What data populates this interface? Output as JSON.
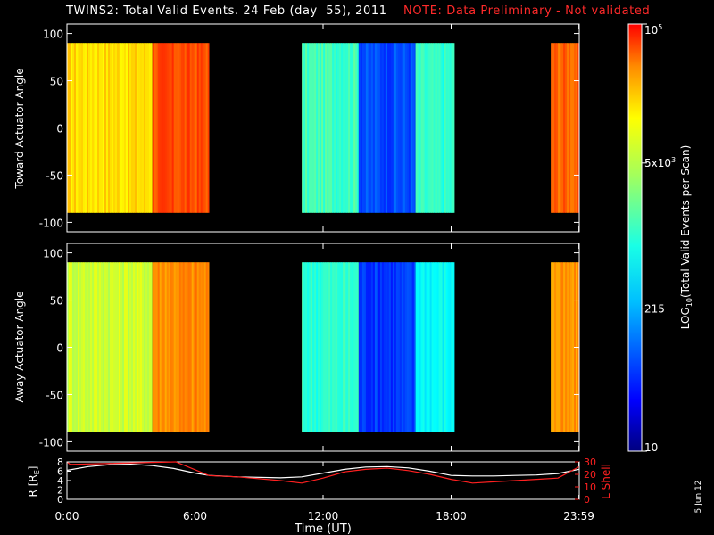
{
  "title": "TWINS2: Total Valid Events. 24 Feb (day  55), 2011",
  "note": "NOTE: Data Preliminary - Not validated",
  "date_stamp": "5 Jun 12",
  "colors": {
    "background": "#000000",
    "axes": "#ffffff",
    "note": "#ff2a2a",
    "r_line": "#ffffff",
    "lshell_line": "#ff2020"
  },
  "chart_data": [
    {
      "type": "heatmap",
      "ylabel": "Toward Actuator Angle",
      "ylim": [
        -110,
        110
      ],
      "yticks": [
        "100",
        "50",
        "0",
        "-50",
        "-100"
      ],
      "xlim": [
        "0:00",
        "23:59"
      ],
      "data_angle_range": [
        -90,
        90
      ],
      "segments": [
        {
          "start": "0:00",
          "end": "4:00",
          "level": 0.66
        },
        {
          "start": "4:00",
          "end": "6:40",
          "level": 0.8
        },
        {
          "start": "11:00",
          "end": "13:40",
          "level": 0.44
        },
        {
          "start": "13:40",
          "end": "16:20",
          "level": 0.2
        },
        {
          "start": "16:20",
          "end": "18:10",
          "level": 0.42
        },
        {
          "start": "22:40",
          "end": "23:59",
          "level": 0.78
        }
      ]
    },
    {
      "type": "heatmap",
      "ylabel": "Away Actuator Angle",
      "ylim": [
        -110,
        110
      ],
      "yticks": [
        "100",
        "50",
        "0",
        "-50",
        "-100"
      ],
      "xlim": [
        "0:00",
        "23:59"
      ],
      "data_angle_range": [
        -90,
        90
      ],
      "segments": [
        {
          "start": "0:00",
          "end": "4:00",
          "level": 0.58
        },
        {
          "start": "4:00",
          "end": "6:40",
          "level": 0.74
        },
        {
          "start": "11:00",
          "end": "13:40",
          "level": 0.42
        },
        {
          "start": "13:40",
          "end": "16:20",
          "level": 0.18
        },
        {
          "start": "16:20",
          "end": "18:10",
          "level": 0.38
        },
        {
          "start": "22:40",
          "end": "23:59",
          "level": 0.72
        }
      ]
    },
    {
      "type": "line",
      "xlabel": "Time (UT)",
      "ylabel": "R [R",
      "ylabel_sub": "E",
      "ylabel_end": "]",
      "ylabel_right": "L Shell",
      "xticks": [
        "0:00",
        "6:00",
        "12:00",
        "18:00",
        "23:59"
      ],
      "ylim": [
        0,
        8
      ],
      "yticks": [
        "0",
        "2",
        "4",
        "6",
        "8"
      ],
      "ylim_right": [
        0,
        30
      ],
      "yticks_right": [
        "0",
        "10",
        "20",
        "30"
      ],
      "series": [
        {
          "axis": "left",
          "x": [
            0,
            1,
            2,
            3,
            4,
            5,
            6,
            6.67,
            8,
            10,
            11,
            12,
            13,
            14,
            15,
            16,
            17,
            18,
            19,
            20,
            21,
            22,
            23,
            23.98
          ],
          "y": [
            6.2,
            7.0,
            7.4,
            7.5,
            7.2,
            6.6,
            5.6,
            5.1,
            4.8,
            4.6,
            4.8,
            5.6,
            6.4,
            6.9,
            7.0,
            6.7,
            6.0,
            5.1,
            5.0,
            5.0,
            5.1,
            5.2,
            5.5,
            6.4
          ]
        },
        {
          "axis": "right",
          "x": [
            0,
            0.15,
            5.1,
            6.67,
            8,
            10,
            11,
            12,
            13,
            14,
            15,
            16,
            17,
            18,
            19,
            20,
            21,
            22,
            23,
            23.98
          ],
          "y": [
            30,
            28,
            30,
            19,
            18,
            15,
            13,
            17,
            22,
            24,
            25,
            23,
            20,
            16,
            13,
            14,
            15,
            16,
            17,
            26
          ]
        }
      ]
    },
    {
      "type": "colorbar",
      "label_pre": "LOG",
      "label_sub": "10",
      "label_post": "(Total Valid  Events per Scan)",
      "scale": "log",
      "range": [
        10,
        100000
      ],
      "ticks": [
        {
          "label": "10",
          "value": 10
        },
        {
          "label": "215",
          "value": 215
        },
        {
          "label": "5x10",
          "sup": "3",
          "value": 5000
        },
        {
          "label": "10",
          "sup": "5",
          "value": 100000
        }
      ]
    }
  ]
}
